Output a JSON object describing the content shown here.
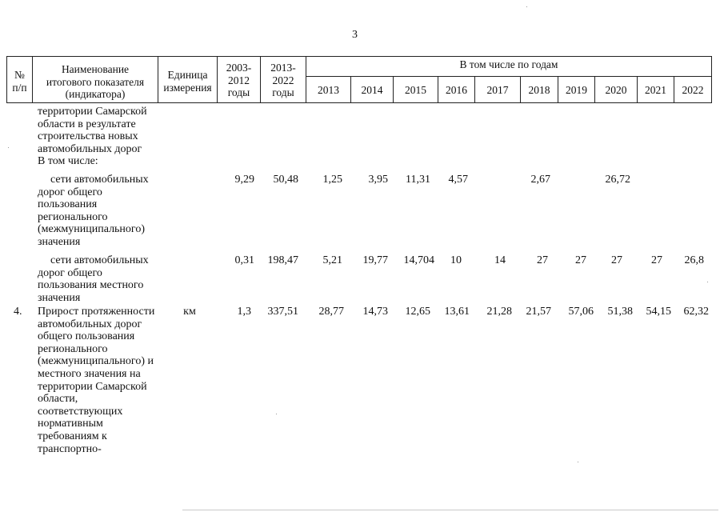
{
  "page_number": "3",
  "header": {
    "num": [
      "№",
      "п/п"
    ],
    "name": [
      "Наименование",
      "итогового показателя",
      "(индикатора)"
    ],
    "unit": [
      "Единица",
      "измерения"
    ],
    "p1": [
      "2003-",
      "2012",
      "годы"
    ],
    "p2": [
      "2013-",
      "2022",
      "годы"
    ],
    "years_caption": "В том числе по годам",
    "years": [
      "2013",
      "2014",
      "2015",
      "2016",
      "2017",
      "2018",
      "2019",
      "2020",
      "2021",
      "2022"
    ]
  },
  "body": {
    "continued_name": [
      "территории Самарской",
      "области в результате",
      "строительства новых",
      "автомобильных дорог",
      "В том числе:"
    ],
    "regional": {
      "name": [
        "сети автомобильных",
        "дорог общего",
        "пользования",
        "регионального",
        "(межмуниципального)",
        "значения"
      ],
      "p1": "9,29",
      "p2": "50,48",
      "years": [
        "1,25",
        "3,95",
        "11,31",
        "4,57",
        "",
        "2,67",
        "",
        "26,72",
        "",
        ""
      ]
    },
    "local": {
      "name": [
        "сети автомобильных",
        "дорог общего",
        "пользования местного",
        "значения"
      ],
      "p1": "0,31",
      "p2": "198,47",
      "years": [
        "5,21",
        "19,77",
        "14,704",
        "10",
        "14",
        "27",
        "27",
        "27",
        "27",
        "26,8"
      ]
    },
    "row4": {
      "num": "4.",
      "unit": "км",
      "name": [
        "Прирост протяженности",
        "автомобильных дорог",
        "общего пользования",
        "регионального",
        "(межмуниципального) и",
        "местного значения на",
        "территории Самарской",
        "области,",
        "соответствующих",
        "нормативным",
        "требованиям к",
        "транспортно-"
      ],
      "p1": "1,3",
      "p2": "337,51",
      "years": [
        "28,77",
        "14,73",
        "12,65",
        "13,61",
        "21,28",
        "21,57",
        "57,06",
        "51,38",
        "54,15",
        "62,32"
      ]
    }
  }
}
